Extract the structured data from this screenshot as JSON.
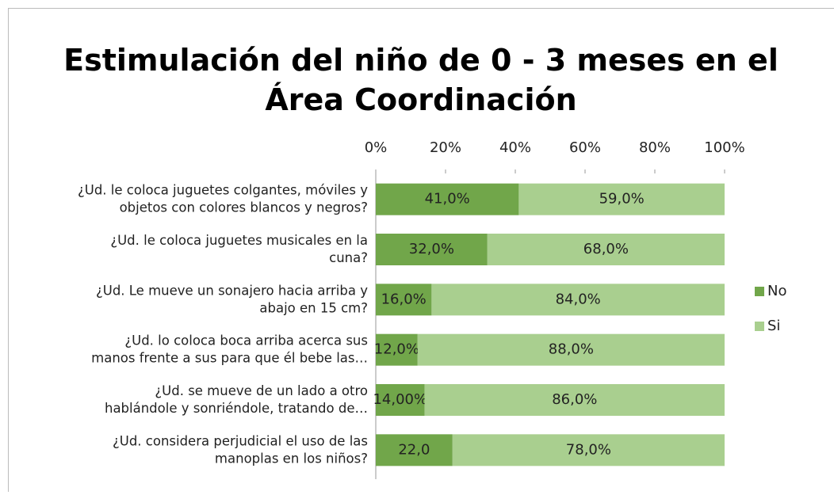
{
  "chart_data": {
    "type": "stacked-barh",
    "title": "Estimulación del niño de 0 - 3 meses en el\nÁrea Coordinación",
    "categories": [
      "¿Ud. le coloca juguetes colgantes, móviles y\nobjetos con colores blancos y negros?",
      "¿Ud. le coloca juguetes musicales en la\ncuna?",
      "¿Ud. Le mueve un sonajero hacia arriba y\nabajo en 15 cm?",
      "¿Ud. lo coloca boca arriba  acerca sus\nmanos frente a sus para que él bebe las…",
      "¿Ud. se mueve de un lado a otro\nhablándole y sonriéndole, tratando de…",
      "¿Ud. considera perjudicial el uso de las\nmanoplas en los niños?"
    ],
    "series": [
      {
        "name": "No",
        "color": "#71a64a",
        "values": [
          41,
          32,
          16,
          12,
          14,
          22
        ],
        "value_labels": [
          "41,0%",
          "32,0%",
          "16,0%",
          "12,0%",
          "14,00%",
          "22,0"
        ]
      },
      {
        "name": "Si",
        "color": "#a9cf8f",
        "values": [
          59,
          68,
          84,
          88,
          86,
          78
        ],
        "value_labels": [
          "59,0%",
          "68,0%",
          "84,0%",
          "88,0%",
          "86,0%",
          "78,0%"
        ]
      }
    ],
    "xlim": [
      0,
      100
    ],
    "xticks": [
      {
        "value": 0,
        "label": "0%"
      },
      {
        "value": 20,
        "label": "20%"
      },
      {
        "value": 40,
        "label": "40%"
      },
      {
        "value": 60,
        "label": "60%"
      },
      {
        "value": 80,
        "label": "80%"
      },
      {
        "value": 100,
        "label": "100%"
      }
    ],
    "legend": "right"
  }
}
